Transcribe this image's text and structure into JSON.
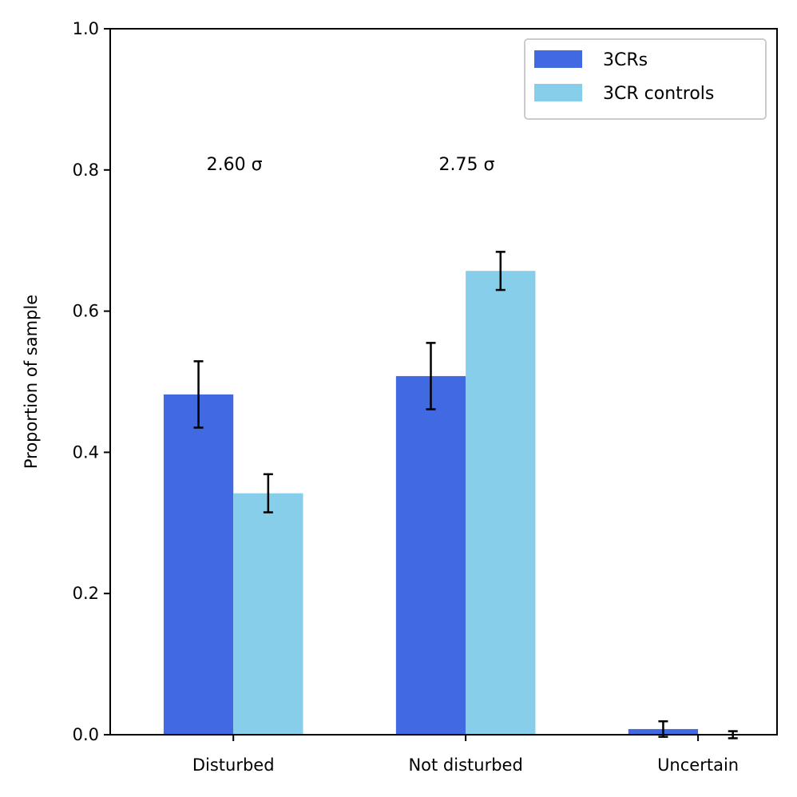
{
  "chart_data": {
    "type": "bar",
    "title": "",
    "xlabel": "",
    "ylabel": "Proportion of sample",
    "ylim": [
      0,
      1.0
    ],
    "yticks": [
      0.0,
      0.2,
      0.4,
      0.6,
      0.8,
      1.0
    ],
    "ytick_labels": [
      "0.0",
      "0.2",
      "0.4",
      "0.6",
      "0.8",
      "1.0"
    ],
    "categories": [
      "Disturbed",
      "Not disturbed",
      "Uncertain"
    ],
    "series": [
      {
        "name": "3CRs",
        "color": "#4169e1",
        "values": [
          0.482,
          0.508,
          0.008
        ],
        "errors": [
          0.047,
          0.047,
          0.011
        ]
      },
      {
        "name": "3CR controls",
        "color": "#87ceeb",
        "values": [
          0.342,
          0.657,
          0.0
        ],
        "errors": [
          0.027,
          0.027,
          0.005
        ]
      }
    ],
    "annotations": [
      {
        "text": "2.60 σ",
        "category": 0,
        "y": 0.8
      },
      {
        "text": "2.75 σ",
        "category": 1,
        "y": 0.8
      }
    ],
    "legend_position": "top-right",
    "grid": false
  }
}
